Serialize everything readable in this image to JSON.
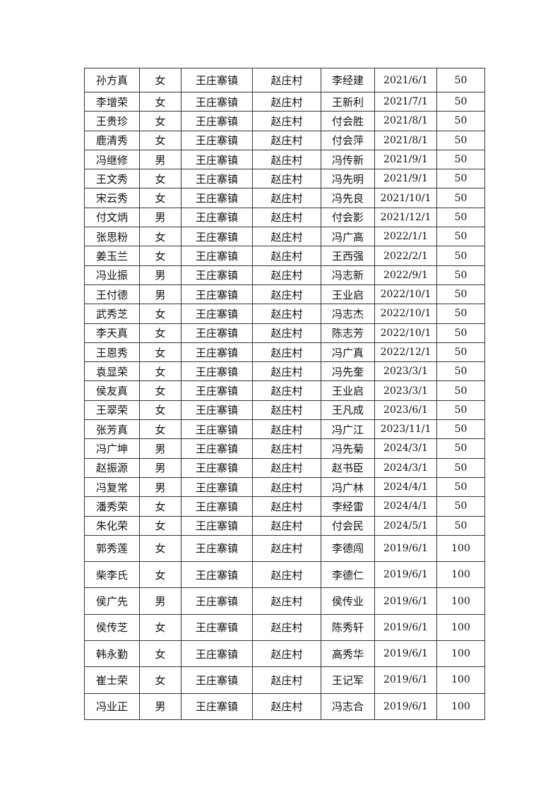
{
  "rows": [
    [
      "孙方真",
      "女",
      "王庄寨镇",
      "赵庄村",
      "李经建",
      "2021/6/1",
      "50"
    ],
    [
      "李增荣",
      "女",
      "王庄寨镇",
      "赵庄村",
      "王新利",
      "2021/7/1",
      "50"
    ],
    [
      "王贵珍",
      "女",
      "王庄寨镇",
      "赵庄村",
      "付会胜",
      "2021/8/1",
      "50"
    ],
    [
      "鹿清秀",
      "女",
      "王庄寨镇",
      "赵庄村",
      "付会萍",
      "2021/8/1",
      "50"
    ],
    [
      "冯继修",
      "男",
      "王庄寨镇",
      "赵庄村",
      "冯传新",
      "2021/9/1",
      "50"
    ],
    [
      "王文秀",
      "女",
      "王庄寨镇",
      "赵庄村",
      "冯先明",
      "2021/9/1",
      "50"
    ],
    [
      "宋云秀",
      "女",
      "王庄寨镇",
      "赵庄村",
      "冯先良",
      "2021/10/1",
      "50"
    ],
    [
      "付文炳",
      "男",
      "王庄寨镇",
      "赵庄村",
      "付会影",
      "2021/12/1",
      "50"
    ],
    [
      "张思粉",
      "女",
      "王庄寨镇",
      "赵庄村",
      "冯广高",
      "2022/1/1",
      "50"
    ],
    [
      "姜玉兰",
      "女",
      "王庄寨镇",
      "赵庄村",
      "王西强",
      "2022/2/1",
      "50"
    ],
    [
      "冯业振",
      "男",
      "王庄寨镇",
      "赵庄村",
      "冯志新",
      "2022/9/1",
      "50"
    ],
    [
      "王付德",
      "男",
      "王庄寨镇",
      "赵庄村",
      "王业启",
      "2022/10/1",
      "50"
    ],
    [
      "武秀芝",
      "女",
      "王庄寨镇",
      "赵庄村",
      "冯志杰",
      "2022/10/1",
      "50"
    ],
    [
      "李天真",
      "女",
      "王庄寨镇",
      "赵庄村",
      "陈志芳",
      "2022/10/1",
      "50"
    ],
    [
      "王恩秀",
      "女",
      "王庄寨镇",
      "赵庄村",
      "冯广真",
      "2022/12/1",
      "50"
    ],
    [
      "袁显荣",
      "女",
      "王庄寨镇",
      "赵庄村",
      "冯先奎",
      "2023/3/1",
      "50"
    ],
    [
      "侯友真",
      "女",
      "王庄寨镇",
      "赵庄村",
      "王业启",
      "2023/3/1",
      "50"
    ],
    [
      "王翠荣",
      "女",
      "王庄寨镇",
      "赵庄村",
      "王凡成",
      "2023/6/1",
      "50"
    ],
    [
      "张芳真",
      "女",
      "王庄寨镇",
      "赵庄村",
      "冯广江",
      "2023/11/1",
      "50"
    ],
    [
      "冯广坤",
      "男",
      "王庄寨镇",
      "赵庄村",
      "冯先菊",
      "2024/3/1",
      "50"
    ],
    [
      "赵振源",
      "男",
      "王庄寨镇",
      "赵庄村",
      "赵书臣",
      "2024/3/1",
      "50"
    ],
    [
      "冯复常",
      "男",
      "王庄寨镇",
      "赵庄村",
      "冯广林",
      "2024/4/1",
      "50"
    ],
    [
      "潘秀荣",
      "女",
      "王庄寨镇",
      "赵庄村",
      "李经雷",
      "2024/4/1",
      "50"
    ],
    [
      "朱化荣",
      "女",
      "王庄寨镇",
      "赵庄村",
      "付会民",
      "2024/5/1",
      "50"
    ],
    [
      "郭秀莲",
      "女",
      "王庄寨镇",
      "赵庄村",
      "李德闯",
      "2019/6/1",
      "100"
    ],
    [
      "柴李氏",
      "女",
      "王庄寨镇",
      "赵庄村",
      "李德仁",
      "2019/6/1",
      "100"
    ],
    [
      "侯广先",
      "男",
      "王庄寨镇",
      "赵庄村",
      "侯传业",
      "2019/6/1",
      "100"
    ],
    [
      "侯传芝",
      "女",
      "王庄寨镇",
      "赵庄村",
      "陈秀轩",
      "2019/6/1",
      "100"
    ],
    [
      "韩永勤",
      "女",
      "王庄寨镇",
      "赵庄村",
      "高秀华",
      "2019/6/1",
      "100"
    ],
    [
      "崔士荣",
      "女",
      "王庄寨镇",
      "赵庄村",
      "王记军",
      "2019/6/1",
      "100"
    ],
    [
      "冯业正",
      "男",
      "王庄寨镇",
      "赵庄村",
      "冯志合",
      "2019/6/1",
      "100"
    ]
  ]
}
